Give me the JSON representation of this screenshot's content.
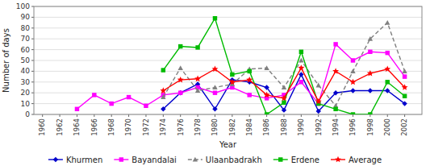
{
  "chart_data": {
    "type": "line",
    "xlabel": "Year",
    "ylabel": "Number of days",
    "x": [
      1960,
      1962,
      1964,
      1966,
      1968,
      1970,
      1972,
      1974,
      1976,
      1978,
      1980,
      1982,
      1984,
      1986,
      1988,
      1990,
      1992,
      1994,
      1996,
      1998,
      2000,
      2002
    ],
    "xlim": [
      1959,
      2004
    ],
    "xticks": [
      1960,
      1962,
      1964,
      1966,
      1968,
      1970,
      1972,
      1974,
      1976,
      1978,
      1980,
      1982,
      1984,
      1986,
      1988,
      1990,
      1992,
      1994,
      1996,
      1998,
      2000,
      2002
    ],
    "ylim": [
      0,
      100
    ],
    "yticks": [
      0,
      10,
      20,
      30,
      40,
      50,
      60,
      70,
      80,
      90,
      100
    ],
    "grid": "y",
    "legend": "bottom",
    "series": [
      {
        "name": "Khurmen",
        "color": "#0000cc",
        "marker": "diamond",
        "line_style": "solid",
        "values": [
          null,
          null,
          null,
          null,
          null,
          null,
          null,
          5,
          20,
          28,
          5,
          32,
          30,
          25,
          4,
          37,
          3,
          20,
          22,
          22,
          22,
          10
        ]
      },
      {
        "name": "Bayandalai",
        "color": "#ff00ff",
        "marker": "square",
        "line_style": "solid",
        "values": [
          null,
          null,
          5,
          18,
          10,
          16,
          8,
          18,
          20,
          25,
          20,
          25,
          18,
          15,
          18,
          30,
          10,
          65,
          50,
          58,
          57,
          35
        ]
      },
      {
        "name": "Ulaanbadrakh",
        "color": "#808080",
        "marker": "triangle",
        "line_style": "dashed",
        "values": [
          null,
          null,
          null,
          null,
          null,
          null,
          null,
          16,
          43,
          22,
          25,
          28,
          42,
          43,
          25,
          50,
          27,
          8,
          40,
          70,
          85,
          40
        ]
      },
      {
        "name": "Erdene",
        "color": "#00bb00",
        "marker": "square",
        "line_style": "solid",
        "values": [
          null,
          null,
          null,
          null,
          null,
          null,
          null,
          41,
          63,
          62,
          89,
          37,
          40,
          0,
          11,
          58,
          10,
          5,
          0,
          0,
          30,
          17
        ]
      },
      {
        "name": "Average",
        "color": "#ff0000",
        "marker": "star",
        "line_style": "solid",
        "values": [
          null,
          null,
          null,
          null,
          null,
          null,
          null,
          22,
          32,
          33,
          42,
          30,
          32,
          18,
          15,
          43,
          12,
          40,
          30,
          38,
          42,
          25
        ]
      }
    ]
  }
}
